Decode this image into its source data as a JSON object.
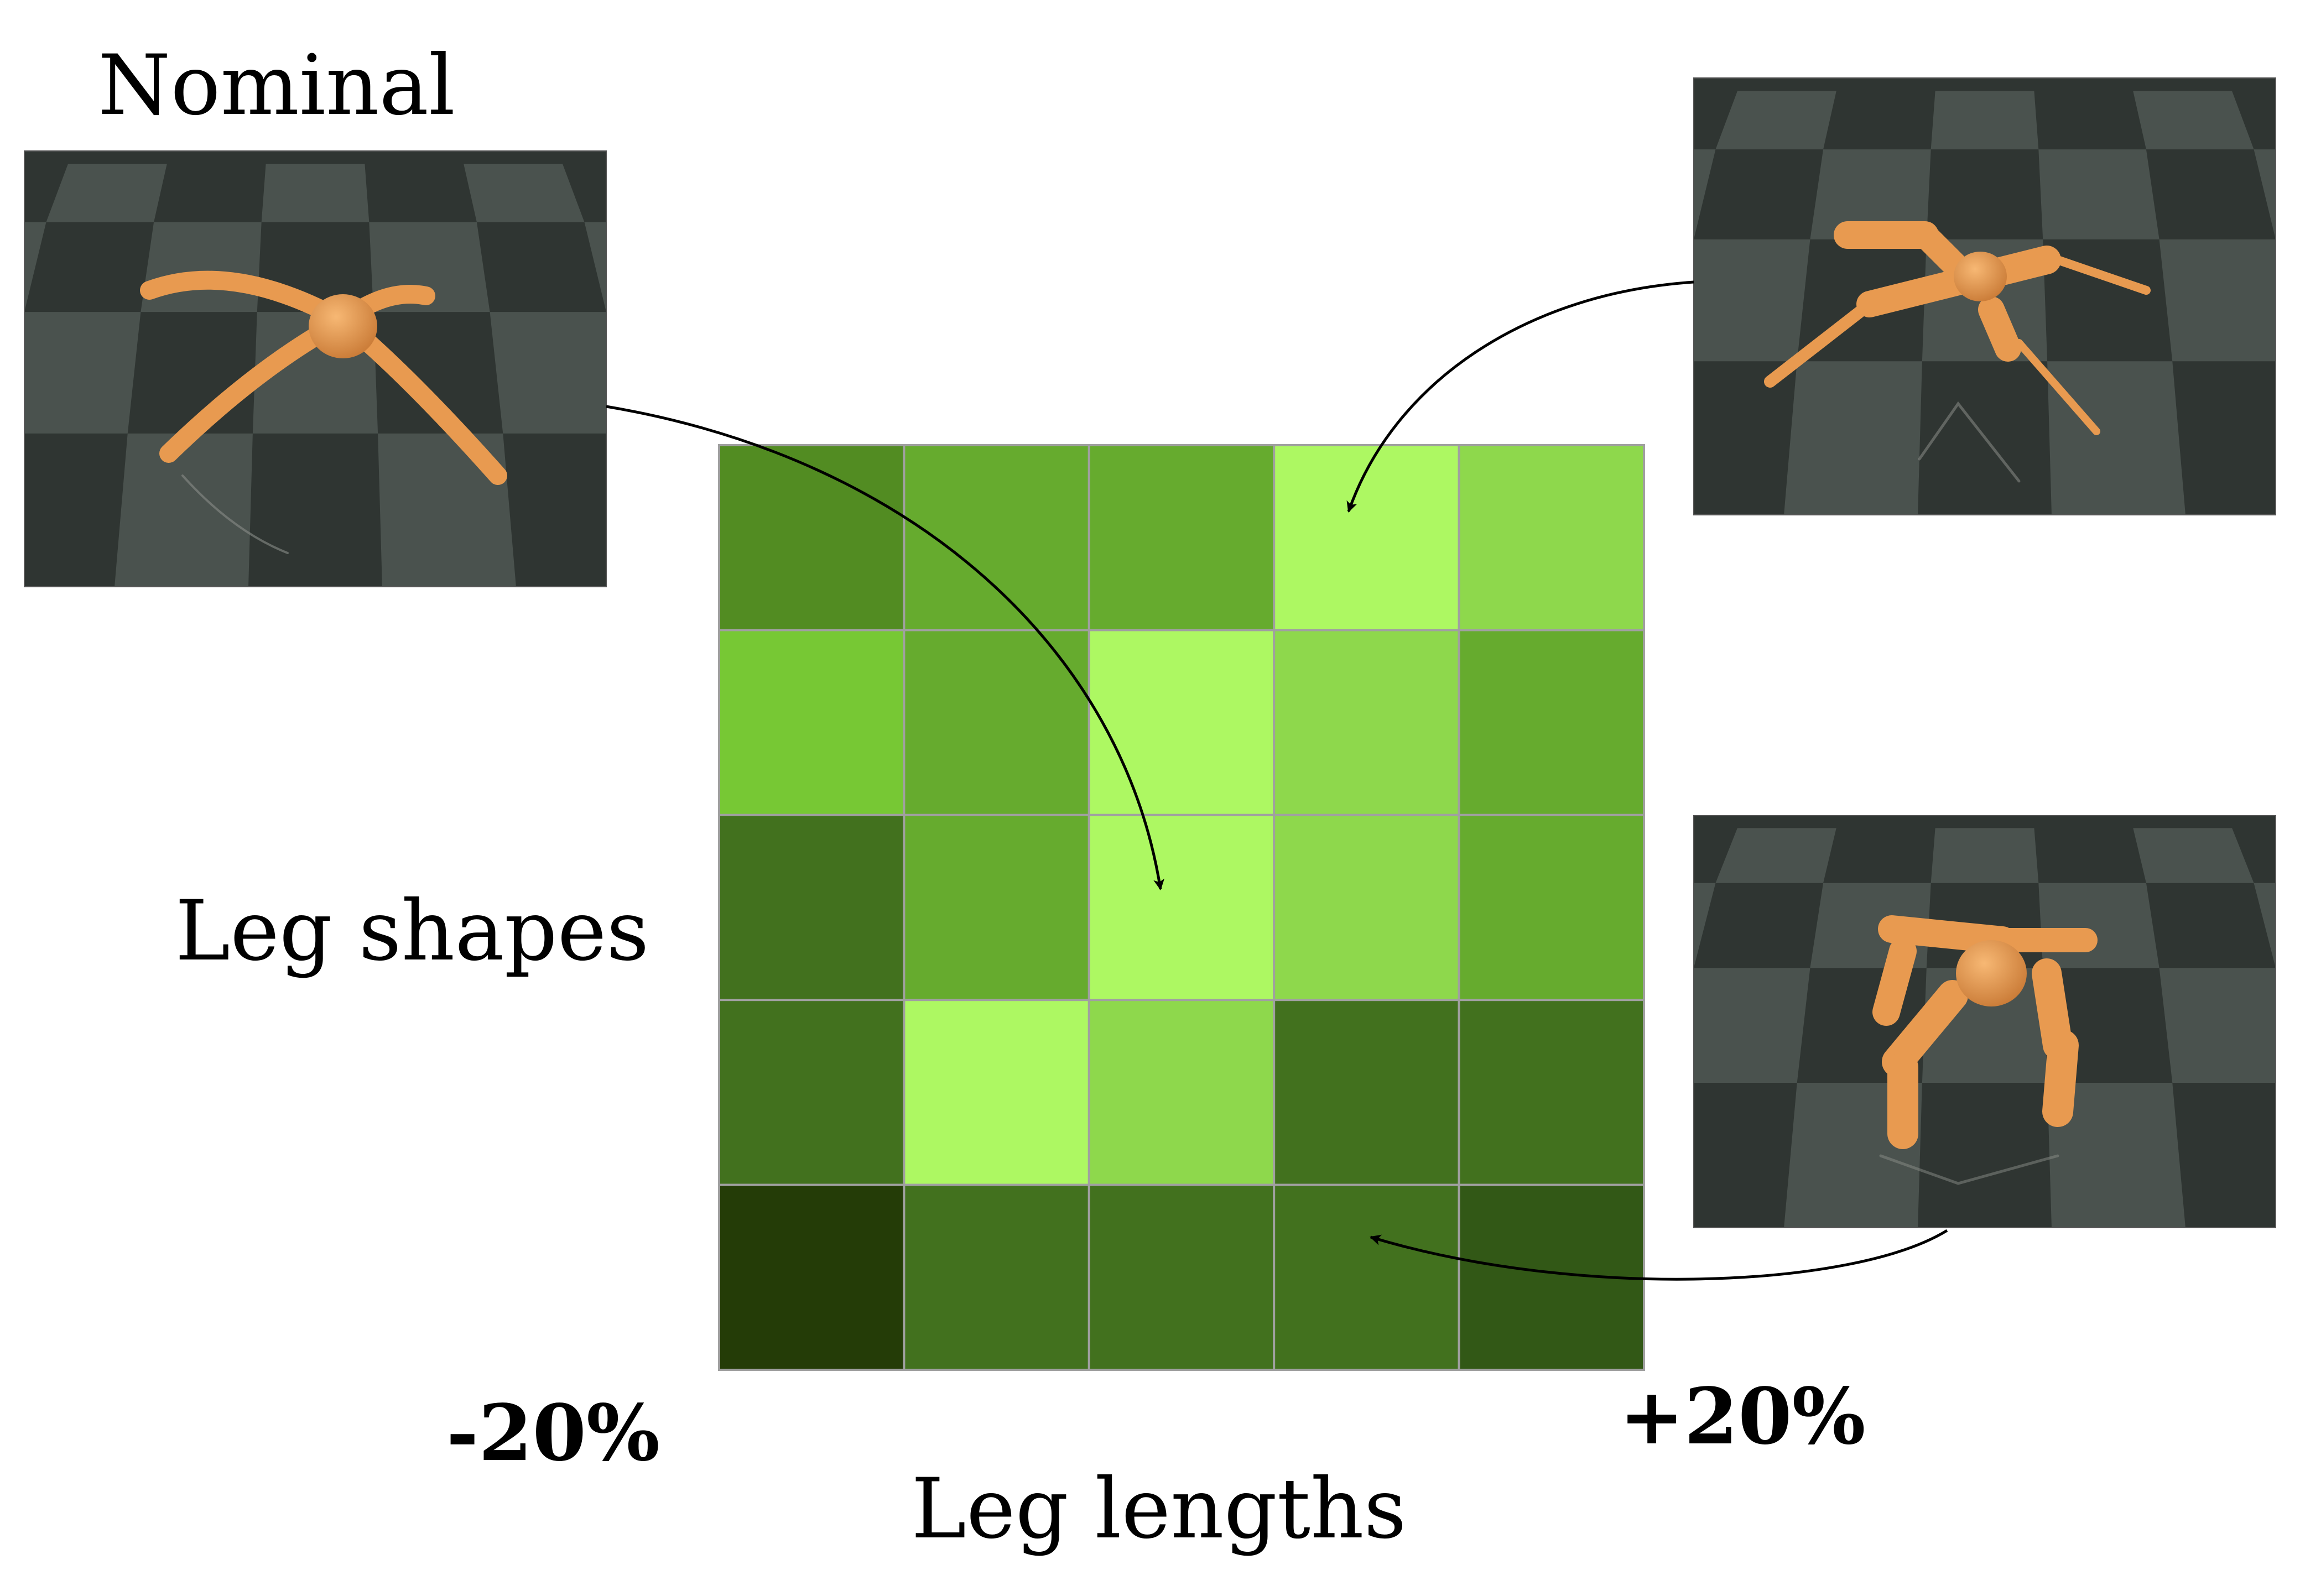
{
  "labels": {
    "nominal": "Nominal",
    "y_axis": "Leg shapes",
    "x_axis": "Leg lengths",
    "x_min": "-20%",
    "x_max": "+20%"
  },
  "heatmap": {
    "rows": 5,
    "cols": 5,
    "cells": [
      [
        "#528c22",
        "#66ab2e",
        "#66ab2e",
        "#adf862",
        "#8ed84c"
      ],
      [
        "#77c834",
        "#66ab2e",
        "#adf862",
        "#8ed84c",
        "#66ab2e"
      ],
      [
        "#42711e",
        "#66ab2e",
        "#adf862",
        "#8ed84c",
        "#66ab2e"
      ],
      [
        "#42711e",
        "#adf862",
        "#8ed84c",
        "#42711e",
        "#42711e"
      ],
      [
        "#243c07",
        "#42711e",
        "#42711e",
        "#42711e",
        "#325816"
      ]
    ],
    "grid_color": "#a0a0a0"
  },
  "scenes": {
    "floor_dark": "#2f3532",
    "floor_light": "#4a524e",
    "robot_color": "#e89a50"
  }
}
